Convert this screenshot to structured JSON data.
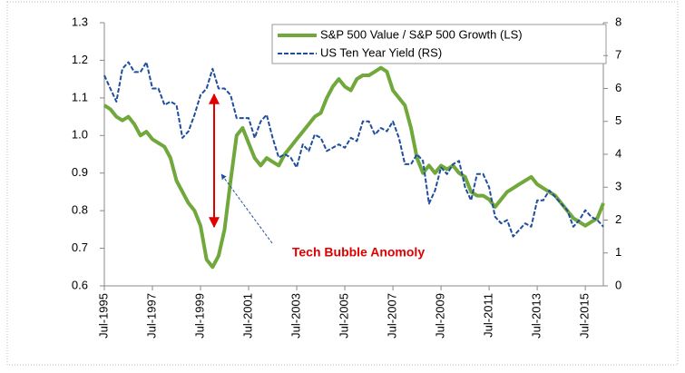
{
  "chart_data": {
    "type": "line",
    "annotation": "Tech Bubble Anomoly",
    "legend": "upper right",
    "grid": false,
    "x": [
      "1995-07",
      "1995-10",
      "1996-01",
      "1996-04",
      "1996-07",
      "1996-10",
      "1997-01",
      "1997-04",
      "1997-07",
      "1997-10",
      "1998-01",
      "1998-04",
      "1998-07",
      "1998-10",
      "1999-01",
      "1999-04",
      "1999-07",
      "1999-10",
      "2000-01",
      "2000-04",
      "2000-07",
      "2000-10",
      "2001-01",
      "2001-04",
      "2001-07",
      "2001-10",
      "2002-01",
      "2002-04",
      "2002-07",
      "2002-10",
      "2003-01",
      "2003-04",
      "2003-07",
      "2003-10",
      "2004-01",
      "2004-04",
      "2004-07",
      "2004-10",
      "2005-01",
      "2005-04",
      "2005-07",
      "2005-10",
      "2006-01",
      "2006-04",
      "2006-07",
      "2006-10",
      "2007-01",
      "2007-04",
      "2007-07",
      "2007-10",
      "2008-01",
      "2008-04",
      "2008-07",
      "2008-10",
      "2009-01",
      "2009-04",
      "2009-07",
      "2009-10",
      "2010-01",
      "2010-04",
      "2010-07",
      "2010-10",
      "2011-01",
      "2011-04",
      "2011-07",
      "2011-10",
      "2012-01",
      "2012-04",
      "2012-07",
      "2012-10",
      "2013-01",
      "2013-04",
      "2013-07",
      "2013-10",
      "2014-01",
      "2014-04",
      "2014-07",
      "2014-10",
      "2015-01",
      "2015-04",
      "2015-07",
      "2015-10",
      "2016-01",
      "2016-04"
    ],
    "xlim": [
      "1995-07",
      "2016-04"
    ],
    "xticks": [
      {
        "value": "1995-07",
        "label": "Jul-1995"
      },
      {
        "value": "1997-07",
        "label": "Jul-1997"
      },
      {
        "value": "1999-07",
        "label": "Jul-1999"
      },
      {
        "value": "2001-07",
        "label": "Jul-2001"
      },
      {
        "value": "2003-07",
        "label": "Jul-2003"
      },
      {
        "value": "2005-07",
        "label": "Jul-2005"
      },
      {
        "value": "2007-07",
        "label": "Jul-2007"
      },
      {
        "value": "2009-07",
        "label": "Jul-2009"
      },
      {
        "value": "2011-07",
        "label": "Jul-2011"
      },
      {
        "value": "2013-07",
        "label": "Jul-2013"
      },
      {
        "value": "2015-07",
        "label": "Jul-2015"
      }
    ],
    "ylim": [
      0.6,
      1.3
    ],
    "yticks": [
      {
        "value": 0.6,
        "label": "0.6"
      },
      {
        "value": 0.7,
        "label": "0.7"
      },
      {
        "value": 0.8,
        "label": "0.8"
      },
      {
        "value": 0.9,
        "label": "0.9"
      },
      {
        "value": 1.0,
        "label": "1.0"
      },
      {
        "value": 1.1,
        "label": "1.1"
      },
      {
        "value": 1.2,
        "label": "1.2"
      },
      {
        "value": 1.3,
        "label": "1.3"
      }
    ],
    "y2lim": [
      0,
      8
    ],
    "y2ticks": [
      0,
      1,
      2,
      3,
      4,
      5,
      6,
      7,
      8
    ],
    "series": [
      {
        "name": "S&P 500 Value / S&P 500 Growth (LS)",
        "color": "#70a83c",
        "axis": "y",
        "values": [
          1.08,
          1.07,
          1.05,
          1.04,
          1.05,
          1.03,
          1.0,
          1.01,
          0.99,
          0.98,
          0.97,
          0.94,
          0.88,
          0.85,
          0.82,
          0.8,
          0.76,
          0.67,
          0.65,
          0.68,
          0.75,
          0.88,
          1.0,
          1.02,
          0.98,
          0.94,
          0.92,
          0.94,
          0.93,
          0.92,
          0.95,
          0.97,
          0.99,
          1.01,
          1.03,
          1.05,
          1.06,
          1.1,
          1.13,
          1.15,
          1.13,
          1.12,
          1.15,
          1.16,
          1.16,
          1.17,
          1.18,
          1.17,
          1.12,
          1.1,
          1.08,
          1.02,
          0.94,
          0.9,
          0.92,
          0.9,
          0.92,
          0.91,
          0.92,
          0.9,
          0.89,
          0.85,
          0.84,
          0.84,
          0.83,
          0.81,
          0.83,
          0.85,
          0.86,
          0.87,
          0.88,
          0.89,
          0.87,
          0.86,
          0.85,
          0.84,
          0.82,
          0.8,
          0.78,
          0.77,
          0.76,
          0.77,
          0.78,
          0.82
        ]
      },
      {
        "name": "US Ten Year Yield (RS)",
        "color": "#1f4e9e",
        "axis": "y2",
        "values": [
          6.4,
          6.0,
          5.6,
          6.6,
          6.8,
          6.5,
          6.5,
          6.8,
          6.0,
          6.0,
          5.5,
          5.6,
          5.5,
          4.5,
          4.7,
          5.2,
          5.8,
          6.0,
          6.6,
          6.0,
          6.0,
          5.8,
          5.1,
          5.1,
          5.1,
          4.5,
          5.0,
          5.2,
          4.5,
          3.9,
          4.0,
          3.9,
          3.6,
          4.3,
          4.1,
          4.6,
          4.5,
          4.1,
          4.2,
          4.3,
          4.2,
          4.5,
          4.4,
          5.0,
          5.0,
          4.6,
          4.8,
          4.7,
          5.0,
          4.5,
          3.7,
          3.7,
          4.0,
          3.8,
          2.5,
          2.9,
          3.6,
          3.4,
          3.7,
          3.8,
          3.0,
          2.6,
          3.4,
          3.4,
          3.0,
          2.1,
          1.9,
          2.0,
          1.5,
          1.7,
          1.9,
          1.8,
          2.6,
          2.6,
          2.9,
          2.7,
          2.5,
          2.3,
          1.8,
          2.0,
          2.3,
          2.1,
          2.0,
          1.8
        ]
      }
    ]
  }
}
